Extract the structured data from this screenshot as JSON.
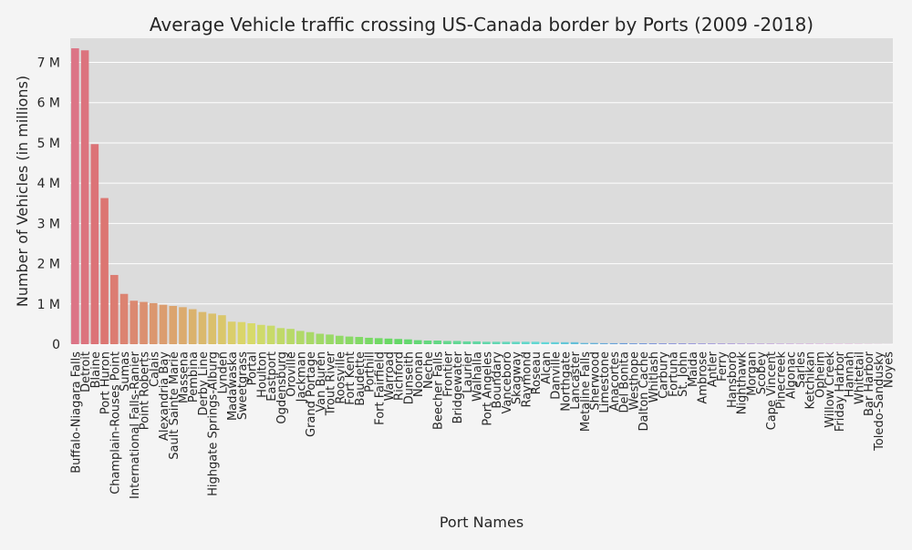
{
  "chart_data": {
    "type": "bar",
    "title": "Average Vehicle traffic crossing US-Canada border by Ports (2009 -2018)",
    "xlabel": "Port Names",
    "ylabel": "Number of Vehicles (in millions)",
    "ylim": [
      0,
      7.6
    ],
    "yticks": [
      0,
      1,
      2,
      3,
      4,
      5,
      6,
      7
    ],
    "ytick_labels": [
      "0",
      "1 M",
      "2 M",
      "3 M",
      "4 M",
      "5 M",
      "6 M",
      "7 M"
    ],
    "grid": true,
    "categories": [
      "Buffalo-Niagara Falls",
      "Detroit",
      "Blaine",
      "Port Huron",
      "Champlain-Rouses Point",
      "Sumas",
      "International Falls-Ranier",
      "Point Roberts",
      "Calais",
      "Alexandria Bay",
      "Sault Sainte Marie",
      "Massena",
      "Pembina",
      "Derby Line",
      "Highgate Springs-Alburg",
      "Lynden",
      "Madawaska",
      "Sweetgrass",
      "Portal",
      "Houlton",
      "Eastport",
      "Ogdensburg",
      "Oroville",
      "Jackman",
      "Grand Portage",
      "Van Buren",
      "Trout River",
      "Roosville",
      "Fort Kent",
      "Baudette",
      "Porthill",
      "Fort Fairfield",
      "Warroad",
      "Richford",
      "Dunseith",
      "Noonan",
      "Neche",
      "Beecher Falls",
      "Frontier",
      "Bridgewater",
      "Laurier",
      "Walhalla",
      "Port Angeles",
      "Boundary",
      "Vanceboro",
      "Skagway",
      "Raymond",
      "Roseau",
      "Alcan",
      "Danville",
      "Northgate",
      "Lancaster",
      "Metaline Falls",
      "Sherwood",
      "Limestone",
      "Anacortes",
      "Del Bonita",
      "Westhope",
      "Dalton Cache",
      "Whitlash",
      "Carbury",
      "Fortuna",
      "St. John",
      "Maida",
      "Ambrose",
      "Antler",
      "Ferry",
      "Hansboro",
      "Nighthawk",
      "Morgan",
      "Scobey",
      "Cape Vincent",
      "Pinecreek",
      "Algonac",
      "Sarles",
      "Ketchikan",
      "Opheim",
      "Willow Creek",
      "Friday Harbor",
      "Hannah",
      "Whitetail",
      "Bar Harbor",
      "Toledo-Sandusky",
      "Noyes"
    ],
    "values": [
      7.35,
      7.3,
      4.97,
      3.63,
      1.72,
      1.25,
      1.08,
      1.05,
      1.02,
      0.98,
      0.95,
      0.92,
      0.87,
      0.8,
      0.76,
      0.72,
      0.56,
      0.55,
      0.52,
      0.48,
      0.46,
      0.4,
      0.38,
      0.33,
      0.3,
      0.26,
      0.24,
      0.21,
      0.19,
      0.18,
      0.16,
      0.15,
      0.14,
      0.13,
      0.12,
      0.1,
      0.09,
      0.09,
      0.08,
      0.08,
      0.07,
      0.07,
      0.06,
      0.06,
      0.06,
      0.06,
      0.06,
      0.06,
      0.05,
      0.05,
      0.05,
      0.05,
      0.03,
      0.03,
      0.025,
      0.025,
      0.025,
      0.02,
      0.02,
      0.018,
      0.016,
      0.015,
      0.014,
      0.013,
      0.012,
      0.012,
      0.011,
      0.011,
      0.01,
      0.01,
      0.009,
      0.009,
      0.008,
      0.008,
      0.007,
      0.007,
      0.006,
      0.006,
      0.005,
      0.005,
      0.004,
      0.003,
      0.002,
      0.001
    ]
  }
}
